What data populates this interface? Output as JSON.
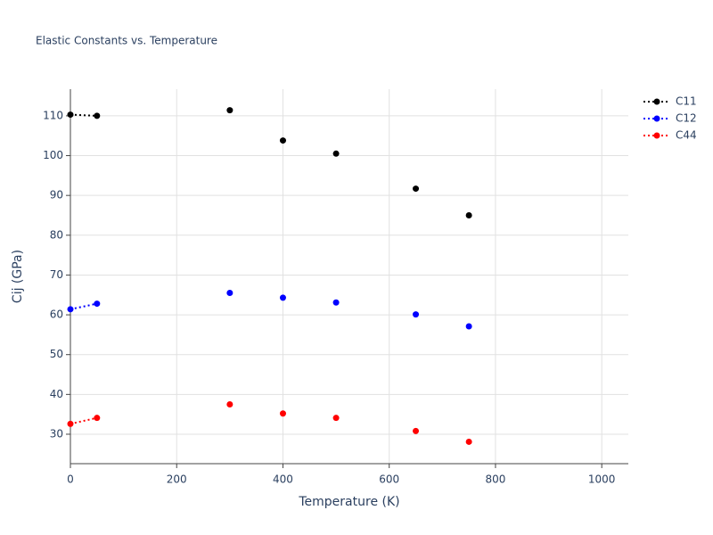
{
  "chart_data": {
    "type": "scatter",
    "title": "Elastic Constants vs. Temperature",
    "x_label": "Temperature (K)",
    "y_label": "Cij (GPa)",
    "x": [
      0,
      50,
      null,
      300,
      null,
      400,
      null,
      500,
      null,
      650,
      null,
      750
    ],
    "series": [
      {
        "name": "C11",
        "color": "#000000",
        "values": [
          110.3,
          110.0,
          null,
          111.4,
          null,
          103.8,
          null,
          100.5,
          null,
          91.7,
          null,
          85.0
        ]
      },
      {
        "name": "C12",
        "color": "#0000ff",
        "values": [
          61.4,
          62.8,
          null,
          65.5,
          null,
          64.3,
          null,
          63.1,
          null,
          60.1,
          null,
          57.1
        ]
      },
      {
        "name": "C44",
        "color": "#ff0000",
        "values": [
          32.6,
          34.1,
          null,
          37.5,
          null,
          35.2,
          null,
          34.1,
          null,
          30.8,
          null,
          28.1
        ]
      }
    ],
    "xlim": [
      0,
      1050
    ],
    "xticks": [
      0,
      200,
      400,
      600,
      800,
      1000
    ],
    "ylim": [
      22.6,
      116.7
    ],
    "yticks": [
      30,
      40,
      50,
      60,
      70,
      80,
      90,
      100,
      110
    ],
    "grid": true,
    "line_style": "dotted",
    "legend": "top-right"
  }
}
